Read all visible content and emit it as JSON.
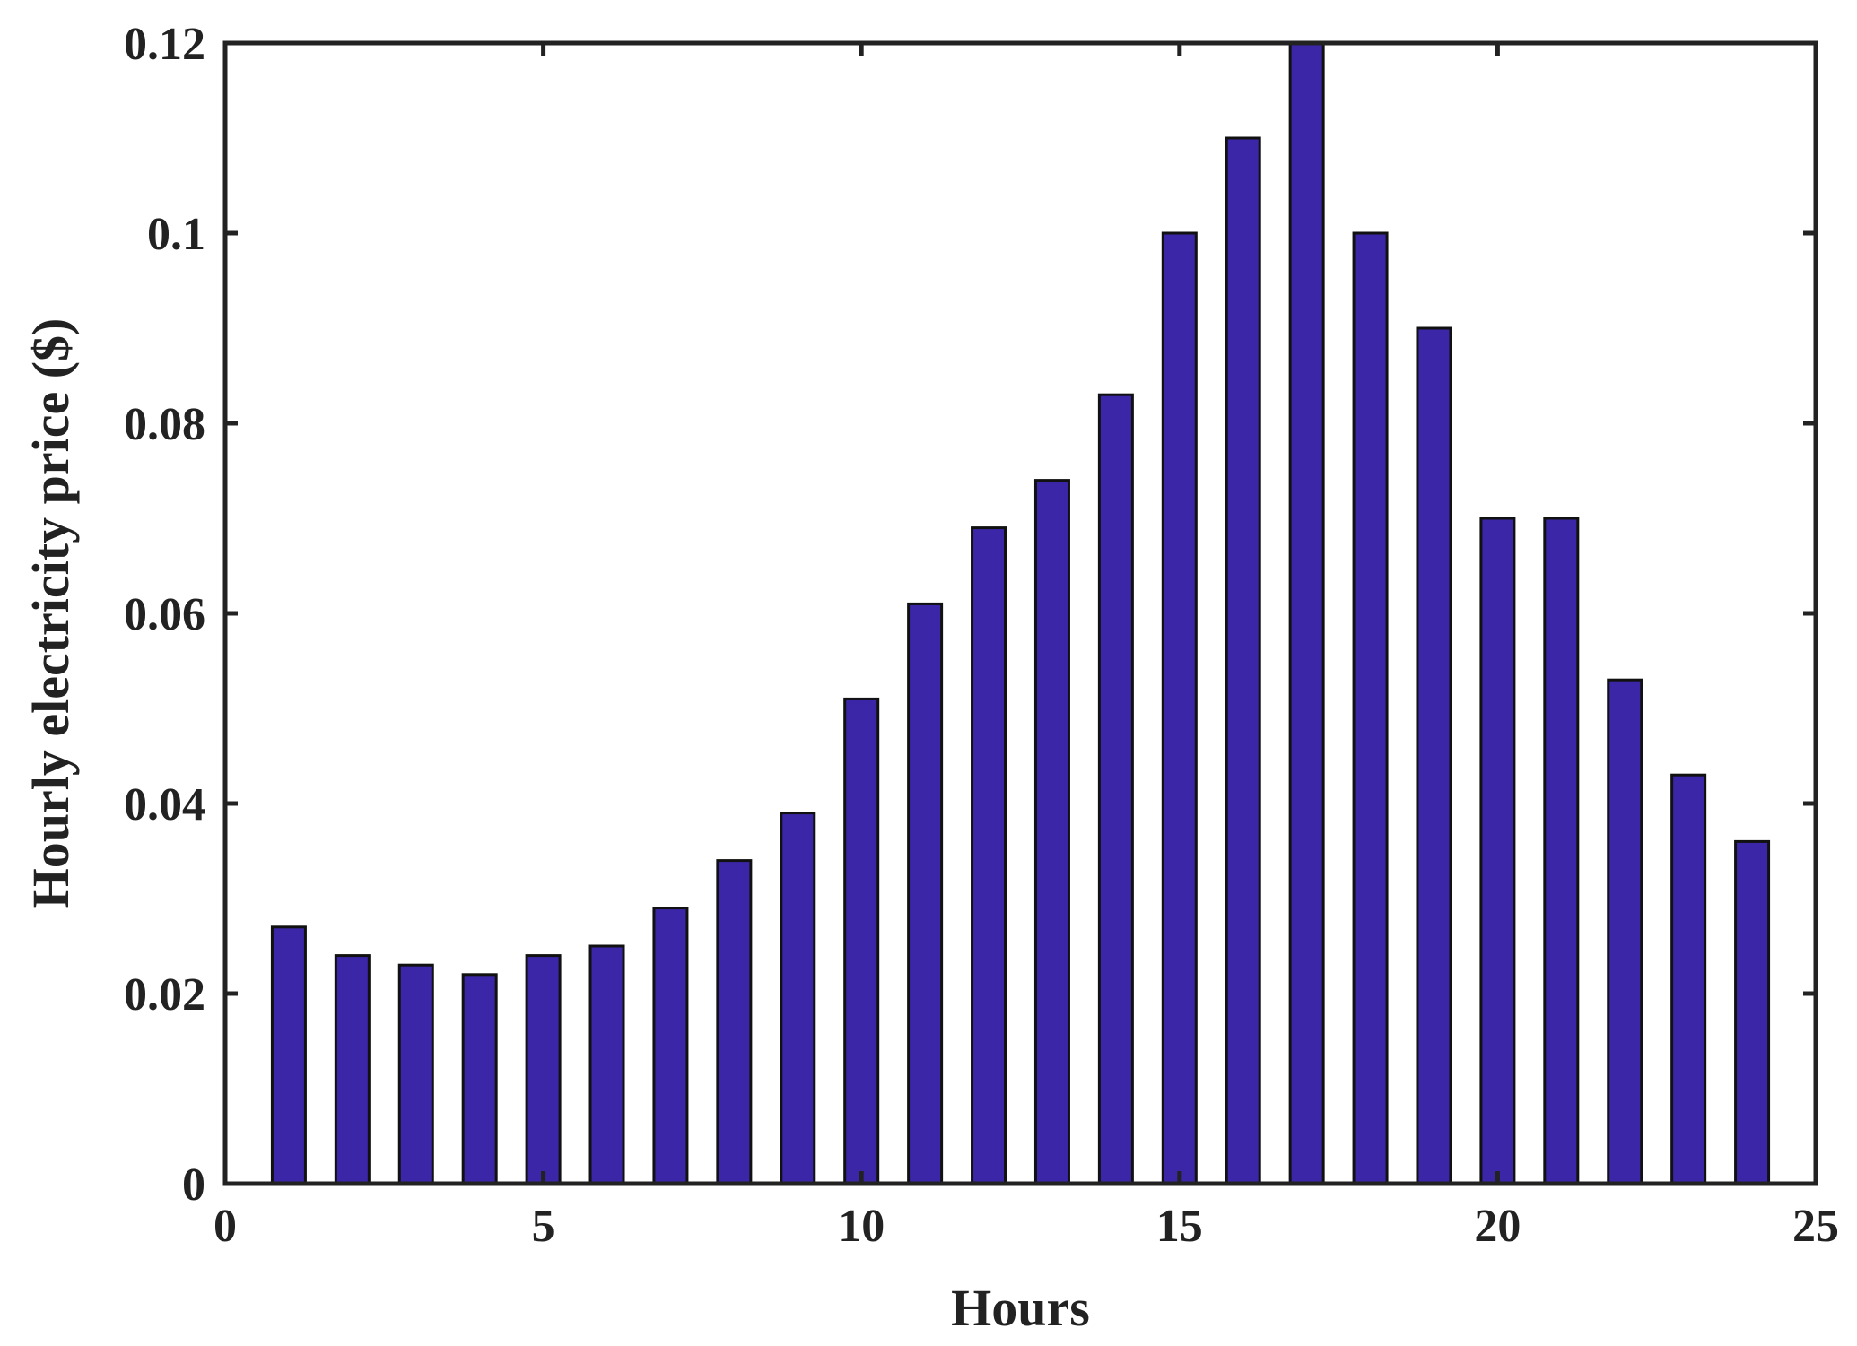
{
  "chart_data": {
    "type": "bar",
    "xlabel": "Hours",
    "ylabel": "Hourly electricity price ($)",
    "x": [
      1,
      2,
      3,
      4,
      5,
      6,
      7,
      8,
      9,
      10,
      11,
      12,
      13,
      14,
      15,
      16,
      17,
      18,
      19,
      20,
      21,
      22,
      23,
      24
    ],
    "values": [
      0.027,
      0.024,
      0.023,
      0.022,
      0.024,
      0.025,
      0.029,
      0.034,
      0.039,
      0.051,
      0.061,
      0.069,
      0.074,
      0.083,
      0.1,
      0.11,
      0.12,
      0.1,
      0.09,
      0.07,
      0.07,
      0.053,
      0.043,
      0.036
    ],
    "xlim": [
      0,
      25
    ],
    "ylim": [
      0,
      0.12
    ],
    "xticks": [
      0,
      5,
      10,
      15,
      20,
      25
    ],
    "xtick_labels": [
      "0",
      "5",
      "10",
      "15",
      "20",
      "25"
    ],
    "yticks": [
      0,
      0.02,
      0.04,
      0.06,
      0.08,
      0.1,
      0.12
    ],
    "ytick_labels": [
      "0",
      "0.02",
      "0.04",
      "0.06",
      "0.08",
      "0.1",
      "0.12"
    ],
    "bar_color": "#3c26a8",
    "edge_color": "#111111",
    "grid": false,
    "legend": "none"
  }
}
